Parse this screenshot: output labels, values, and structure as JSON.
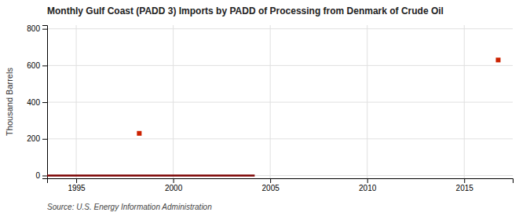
{
  "chart_data": {
    "type": "line",
    "title": "Monthly Gulf Coast (PADD 3) Imports by PADD of Processing from Denmark of Crude Oil",
    "ylabel": "Thousand Barrels",
    "source": "Source: U.S. Energy Information Administration",
    "series": [
      {
        "type": "line",
        "color": "#7B0000",
        "x": [
          1993.5,
          2004.2
        ],
        "values": [
          0,
          0
        ]
      },
      {
        "type": "scatter",
        "marker": "square",
        "color": "#CC2200",
        "x": [
          1998.25,
          2016.75
        ],
        "values": [
          230,
          630
        ]
      }
    ],
    "xlim": [
      1993.5,
      2017.5
    ],
    "ylim": [
      -15,
      820
    ],
    "xticks": [
      1995,
      2000,
      2005,
      2010,
      2015
    ],
    "yticks": [
      0,
      200,
      400,
      600,
      800
    ],
    "grid": true
  }
}
